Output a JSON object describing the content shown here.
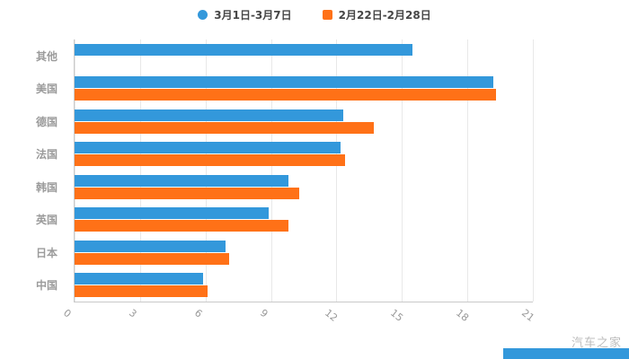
{
  "watermark": {
    "text": "汽车之家"
  },
  "colors": {
    "series_blue": "#3398db",
    "series_orange": "#ff7117",
    "axis_line": "#c9c9c9",
    "grid_line": "#e8e8e8",
    "tick_text": "#999999",
    "legend_text": "#464646"
  },
  "chart_data": {
    "type": "bar",
    "orientation": "horizontal",
    "title": "",
    "xlabel": "",
    "ylabel": "",
    "grid": true,
    "legend_position": "top",
    "xlim": [
      0,
      21
    ],
    "x_ticks": [
      0,
      3,
      6,
      9,
      12,
      15,
      18,
      21
    ],
    "categories": [
      "其他",
      "美国",
      "德国",
      "法国",
      "韩国",
      "英国",
      "日本",
      "中国"
    ],
    "series": [
      {
        "name": "3月1日-3月7日",
        "color": "#3398db",
        "marker": "circle",
        "values": [
          15.5,
          19.2,
          12.3,
          12.2,
          9.8,
          8.9,
          6.9,
          5.9
        ]
      },
      {
        "name": "2月22日-2月28日",
        "color": "#ff7117",
        "marker": "square",
        "values": [
          null,
          19.3,
          13.7,
          12.4,
          10.3,
          9.8,
          7.1,
          6.1
        ]
      }
    ]
  }
}
